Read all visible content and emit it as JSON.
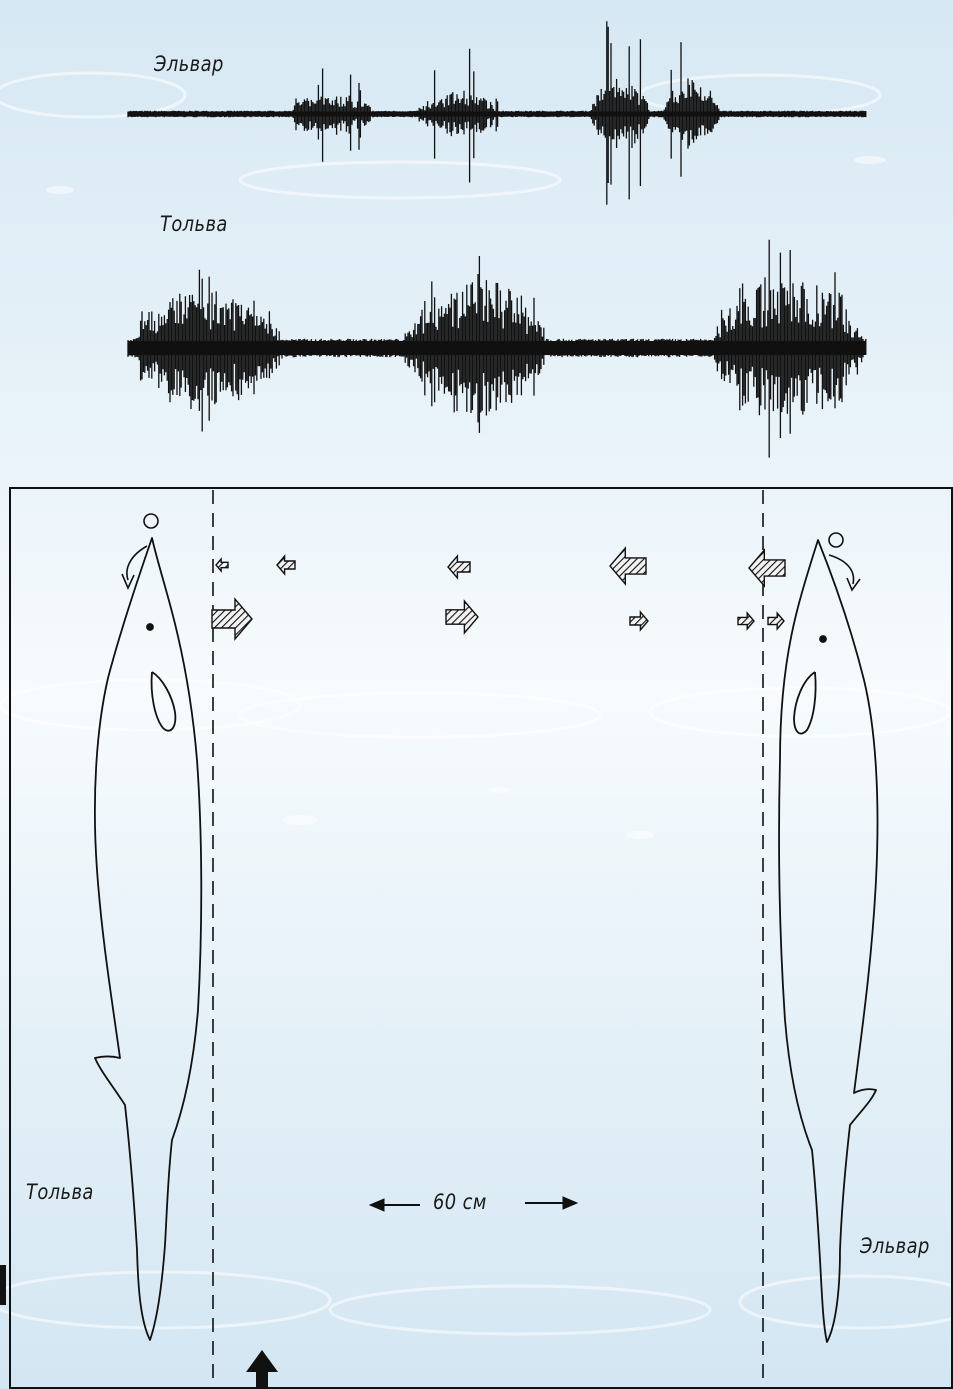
{
  "waveforms": [
    {
      "name": "Эльвар"
    },
    {
      "name": "Тольва"
    }
  ],
  "diagram": {
    "left_dolphin_label": "Тольва",
    "right_dolphin_label": "Эльвар",
    "distance_label": "60 см"
  },
  "colors": {
    "ink": "#111111",
    "water_light": "#f7fbfd",
    "water_dark": "#d3e6f2"
  },
  "icons": [
    "dolphin-outline-icon",
    "bubble-icon",
    "curved-arrow-icon",
    "hatched-arrow-icon",
    "up-arrow-icon"
  ]
}
